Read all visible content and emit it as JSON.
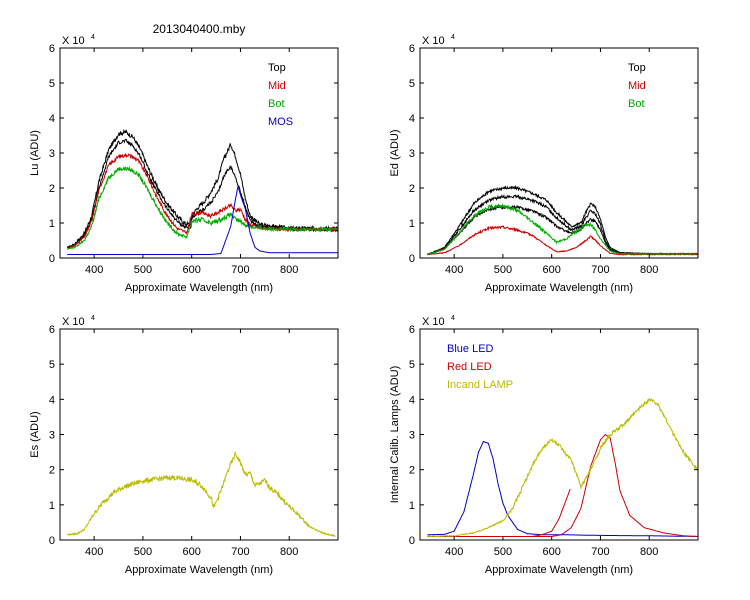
{
  "figure_title": "2013040400.mby",
  "chart_data": [
    {
      "type": "line",
      "id": "lu",
      "title": "",
      "xlabel": "Approximate Wavelength (nm)",
      "ylabel": "Lu (ADU)",
      "multiplier": "X 10",
      "exponent": "4",
      "xlim": [
        330,
        900
      ],
      "ylim": [
        0,
        6
      ],
      "xticks": [
        400,
        500,
        600,
        700,
        800
      ],
      "yticks": [
        0,
        1,
        2,
        3,
        4,
        5,
        6
      ],
      "legend": [
        {
          "label": "Top",
          "color": "#000000"
        },
        {
          "label": "Mid",
          "color": "#cc0000"
        },
        {
          "label": "Bot",
          "color": "#00aa00"
        },
        {
          "label": "MOS",
          "color": "#0000cc"
        }
      ],
      "series": [
        {
          "name": "Top",
          "color": "#000000",
          "noise": 0.06,
          "x": [
            345,
            360,
            380,
            395,
            410,
            430,
            450,
            465,
            480,
            495,
            510,
            530,
            550,
            570,
            585,
            598,
            600,
            610,
            625,
            640,
            655,
            665,
            675,
            680,
            690,
            700,
            710,
            720,
            740,
            800,
            900
          ],
          "y": [
            0.3,
            0.4,
            0.7,
            1.2,
            2.2,
            3.1,
            3.55,
            3.6,
            3.45,
            3.1,
            2.6,
            2.0,
            1.55,
            1.2,
            1.0,
            0.95,
            1.2,
            1.4,
            1.6,
            1.9,
            2.3,
            2.8,
            3.1,
            3.25,
            2.9,
            2.4,
            1.7,
            1.2,
            0.95,
            0.85,
            0.85
          ]
        },
        {
          "name": "Top-2",
          "color": "#000000",
          "noise": 0.05,
          "x": [
            345,
            360,
            380,
            395,
            410,
            430,
            450,
            465,
            480,
            495,
            510,
            530,
            550,
            570,
            585,
            598,
            600,
            610,
            625,
            640,
            655,
            665,
            675,
            680,
            690,
            700,
            710,
            720,
            740,
            800,
            900
          ],
          "y": [
            0.3,
            0.35,
            0.65,
            1.1,
            2.0,
            2.9,
            3.3,
            3.35,
            3.2,
            2.9,
            2.4,
            1.85,
            1.4,
            1.05,
            0.9,
            0.85,
            1.1,
            1.25,
            1.4,
            1.6,
            1.9,
            2.3,
            2.55,
            2.6,
            2.3,
            1.9,
            1.45,
            1.05,
            0.9,
            0.82,
            0.8
          ]
        },
        {
          "name": "Mid",
          "color": "#cc0000",
          "noise": 0.05,
          "x": [
            345,
            360,
            380,
            395,
            410,
            430,
            450,
            470,
            490,
            510,
            530,
            550,
            570,
            590,
            600,
            620,
            640,
            660,
            680,
            690,
            700,
            710,
            720,
            740,
            800,
            900
          ],
          "y": [
            0.28,
            0.35,
            0.6,
            1.05,
            1.95,
            2.65,
            2.9,
            2.95,
            2.8,
            2.3,
            1.7,
            1.2,
            0.85,
            0.72,
            1.25,
            1.3,
            1.2,
            1.35,
            1.5,
            1.35,
            1.4,
            1.1,
            0.95,
            0.85,
            0.82,
            0.82
          ]
        },
        {
          "name": "Bot",
          "color": "#00aa00",
          "noise": 0.06,
          "x": [
            345,
            360,
            380,
            395,
            410,
            430,
            450,
            470,
            490,
            510,
            530,
            550,
            570,
            590,
            600,
            620,
            640,
            660,
            680,
            690,
            700,
            710,
            720,
            740,
            800,
            900
          ],
          "y": [
            0.25,
            0.3,
            0.5,
            0.9,
            1.7,
            2.3,
            2.55,
            2.55,
            2.4,
            1.95,
            1.45,
            1.0,
            0.7,
            0.6,
            1.05,
            1.1,
            1.0,
            1.1,
            1.25,
            1.1,
            1.05,
            0.95,
            0.9,
            0.85,
            0.82,
            0.82
          ]
        },
        {
          "name": "MOS",
          "color": "#0000cc",
          "noise": 0.0,
          "x": [
            345,
            400,
            500,
            600,
            640,
            660,
            680,
            690,
            695,
            700,
            710,
            720,
            730,
            740,
            760,
            800,
            900
          ],
          "y": [
            0.1,
            0.1,
            0.1,
            0.1,
            0.1,
            0.13,
            0.9,
            1.7,
            2.05,
            1.8,
            1.4,
            0.7,
            0.3,
            0.2,
            0.15,
            0.15,
            0.15
          ]
        }
      ]
    },
    {
      "type": "line",
      "id": "ed",
      "title": "",
      "xlabel": "Approximate Wavelength (nm)",
      "ylabel": "Ed  (ADU)",
      "multiplier": "X 10",
      "exponent": "4",
      "xlim": [
        330,
        900
      ],
      "ylim": [
        0,
        6
      ],
      "xticks": [
        400,
        500,
        600,
        700,
        800
      ],
      "yticks": [
        0,
        1,
        2,
        3,
        4,
        5,
        6
      ],
      "legend": [
        {
          "label": "Top",
          "color": "#000000"
        },
        {
          "label": "Mid",
          "color": "#cc0000"
        },
        {
          "label": "Bot",
          "color": "#00aa00"
        }
      ],
      "series": [
        {
          "name": "Top",
          "color": "#000000",
          "noise": 0.04,
          "x": [
            345,
            380,
            410,
            440,
            470,
            500,
            530,
            560,
            590,
            610,
            640,
            660,
            670,
            680,
            690,
            700,
            710,
            720,
            740,
            800,
            900
          ],
          "y": [
            0.1,
            0.3,
            0.9,
            1.55,
            1.9,
            2.0,
            2.0,
            1.85,
            1.65,
            1.3,
            0.9,
            1.0,
            1.3,
            1.55,
            1.45,
            1.1,
            0.6,
            0.3,
            0.15,
            0.12,
            0.12
          ]
        },
        {
          "name": "Top-2",
          "color": "#000000",
          "noise": 0.04,
          "x": [
            345,
            380,
            410,
            440,
            470,
            500,
            530,
            560,
            590,
            610,
            640,
            660,
            670,
            680,
            690,
            700,
            710,
            720,
            740,
            800,
            900
          ],
          "y": [
            0.1,
            0.28,
            0.8,
            1.35,
            1.65,
            1.75,
            1.75,
            1.65,
            1.45,
            1.15,
            0.8,
            0.9,
            1.15,
            1.35,
            1.25,
            0.95,
            0.5,
            0.25,
            0.15,
            0.12,
            0.12
          ]
        },
        {
          "name": "Top-3",
          "color": "#000000",
          "noise": 0.04,
          "x": [
            345,
            380,
            410,
            440,
            470,
            500,
            530,
            560,
            590,
            610,
            640,
            660,
            670,
            680,
            690,
            700,
            710,
            720,
            740,
            800,
            900
          ],
          "y": [
            0.1,
            0.25,
            0.7,
            1.15,
            1.4,
            1.45,
            1.45,
            1.35,
            1.15,
            0.9,
            0.7,
            0.8,
            1.0,
            1.1,
            1.05,
            0.8,
            0.45,
            0.22,
            0.13,
            0.12,
            0.12
          ]
        },
        {
          "name": "Mid",
          "color": "#cc0000",
          "noise": 0.04,
          "x": [
            345,
            380,
            410,
            440,
            470,
            500,
            530,
            560,
            590,
            610,
            630,
            650,
            670,
            680,
            690,
            700,
            720,
            740,
            800,
            900
          ],
          "y": [
            0.1,
            0.15,
            0.35,
            0.65,
            0.85,
            0.88,
            0.8,
            0.65,
            0.35,
            0.18,
            0.2,
            0.3,
            0.5,
            0.62,
            0.5,
            0.35,
            0.13,
            0.1,
            0.1,
            0.1
          ]
        },
        {
          "name": "Bot",
          "color": "#00aa00",
          "noise": 0.05,
          "x": [
            345,
            380,
            410,
            440,
            470,
            500,
            530,
            560,
            590,
            610,
            630,
            650,
            670,
            680,
            690,
            700,
            720,
            740,
            800,
            900
          ],
          "y": [
            0.1,
            0.25,
            0.7,
            1.2,
            1.45,
            1.5,
            1.35,
            1.05,
            0.7,
            0.45,
            0.55,
            0.75,
            0.95,
            0.95,
            0.8,
            0.55,
            0.2,
            0.12,
            0.12,
            0.12
          ]
        }
      ]
    },
    {
      "type": "line",
      "id": "es",
      "title": "",
      "xlabel": "Approximate Wavelength (nm)",
      "ylabel": "Es  (ADU)",
      "multiplier": "X 10",
      "exponent": "4",
      "xlim": [
        330,
        900
      ],
      "ylim": [
        0,
        6
      ],
      "xticks": [
        400,
        500,
        600,
        700,
        800
      ],
      "yticks": [
        0,
        1,
        2,
        3,
        4,
        5,
        6
      ],
      "legend": [],
      "series": [
        {
          "name": "Es",
          "color": "#bbbb00",
          "noise": 0.07,
          "x": [
            345,
            365,
            380,
            400,
            420,
            440,
            460,
            480,
            500,
            520,
            540,
            560,
            580,
            600,
            620,
            640,
            645,
            660,
            675,
            685,
            690,
            700,
            710,
            720,
            730,
            740,
            750,
            760,
            780,
            800,
            820,
            840,
            860,
            880,
            895
          ],
          "y": [
            0.15,
            0.18,
            0.3,
            0.75,
            1.1,
            1.35,
            1.5,
            1.6,
            1.68,
            1.72,
            1.75,
            1.78,
            1.75,
            1.7,
            1.55,
            1.2,
            0.9,
            1.4,
            2.0,
            2.3,
            2.45,
            2.2,
            1.85,
            1.9,
            1.55,
            1.6,
            1.7,
            1.5,
            1.25,
            0.95,
            0.7,
            0.4,
            0.25,
            0.15,
            0.12
          ]
        }
      ]
    },
    {
      "type": "line",
      "id": "calib",
      "title": "",
      "xlabel": "Approximate Wavelength (nm)",
      "ylabel": "Internal Calib. Lamps  (ADU)",
      "multiplier": "X 10",
      "exponent": "4",
      "xlim": [
        330,
        900
      ],
      "ylim": [
        0,
        6
      ],
      "xticks": [
        400,
        500,
        600,
        700,
        800
      ],
      "yticks": [
        0,
        1,
        2,
        3,
        4,
        5,
        6
      ],
      "legend": [
        {
          "label": "Blue LED",
          "color": "#0000cc"
        },
        {
          "label": "Red LED",
          "color": "#cc0000"
        },
        {
          "label": "Incand LAMP",
          "color": "#bbbb00"
        }
      ],
      "series": [
        {
          "name": "Blue LED",
          "color": "#0000cc",
          "noise": 0.0,
          "x": [
            345,
            380,
            400,
            420,
            440,
            450,
            460,
            470,
            480,
            490,
            500,
            510,
            520,
            530,
            550,
            580,
            620,
            700,
            800,
            900
          ],
          "y": [
            0.15,
            0.16,
            0.25,
            0.8,
            1.9,
            2.5,
            2.8,
            2.75,
            2.3,
            1.6,
            1.05,
            0.7,
            0.5,
            0.3,
            0.18,
            0.15,
            0.15,
            0.13,
            0.12,
            0.1
          ]
        },
        {
          "name": "Red LED",
          "color": "#cc0000",
          "noise": 0.0,
          "x": [
            345,
            500,
            600,
            620,
            640,
            660,
            680,
            700,
            710,
            720,
            730,
            740,
            760,
            790,
            830,
            870,
            900
          ],
          "y": [
            0.1,
            0.1,
            0.1,
            0.15,
            0.35,
            0.9,
            2.1,
            2.85,
            3.0,
            2.9,
            2.2,
            1.4,
            0.7,
            0.35,
            0.2,
            0.12,
            0.1
          ]
        },
        {
          "name": "Red LED stray",
          "color": "#cc0000",
          "noise": 0.0,
          "x": [
            560,
            580,
            600,
            615,
            638
          ],
          "y": [
            0.1,
            0.15,
            0.25,
            0.6,
            1.45
          ]
        },
        {
          "name": "Incand LAMP",
          "color": "#bbbb00",
          "noise": 0.05,
          "x": [
            345,
            400,
            440,
            470,
            500,
            520,
            540,
            560,
            580,
            600,
            615,
            630,
            640,
            660,
            680,
            700,
            720,
            740,
            760,
            780,
            800,
            815,
            830,
            850,
            870,
            900
          ],
          "y": [
            0.1,
            0.12,
            0.2,
            0.35,
            0.55,
            0.9,
            1.5,
            2.1,
            2.6,
            2.85,
            2.7,
            2.4,
            2.3,
            1.5,
            2.0,
            2.6,
            3.0,
            3.2,
            3.45,
            3.75,
            4.0,
            3.9,
            3.55,
            3.0,
            2.5,
            2.0
          ]
        }
      ]
    }
  ]
}
